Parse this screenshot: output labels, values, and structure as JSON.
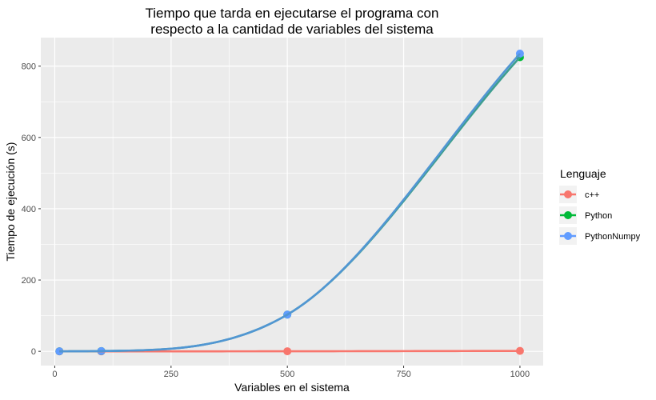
{
  "chart_data": {
    "type": "line",
    "title": [
      "Tiempo que tarda en ejecutarse el programa con",
      "respecto a la cantidad de variables del sistema"
    ],
    "xlabel": "Variables en el sistema",
    "ylabel": "Tiempo de ejecución (s)",
    "xlim": [
      -30,
      1050
    ],
    "ylim": [
      -40,
      880
    ],
    "x_ticks": [
      0,
      250,
      500,
      750,
      1000
    ],
    "y_ticks": [
      0,
      200,
      400,
      600,
      800
    ],
    "x_tick_labels": [
      "0",
      "250",
      "500",
      "750",
      "1000"
    ],
    "y_tick_labels": [
      "0",
      "200",
      "400",
      "600",
      "800"
    ],
    "grid": true,
    "legend": {
      "title": "Lenguaje",
      "position": "right"
    },
    "series": [
      {
        "name": "c++",
        "color": "#F8766D",
        "x": [
          10,
          100,
          500,
          1000
        ],
        "y": [
          0.0,
          0.01,
          0.2,
          1.2
        ]
      },
      {
        "name": "Python",
        "color": "#00BA38",
        "x": [
          10,
          100,
          500,
          1000
        ],
        "y": [
          0.1,
          0.8,
          103,
          825
        ]
      },
      {
        "name": "PythonNumpy",
        "color": "#619CFF",
        "x": [
          10,
          100,
          500,
          1000
        ],
        "y": [
          0.1,
          0.8,
          103,
          835
        ]
      }
    ]
  }
}
